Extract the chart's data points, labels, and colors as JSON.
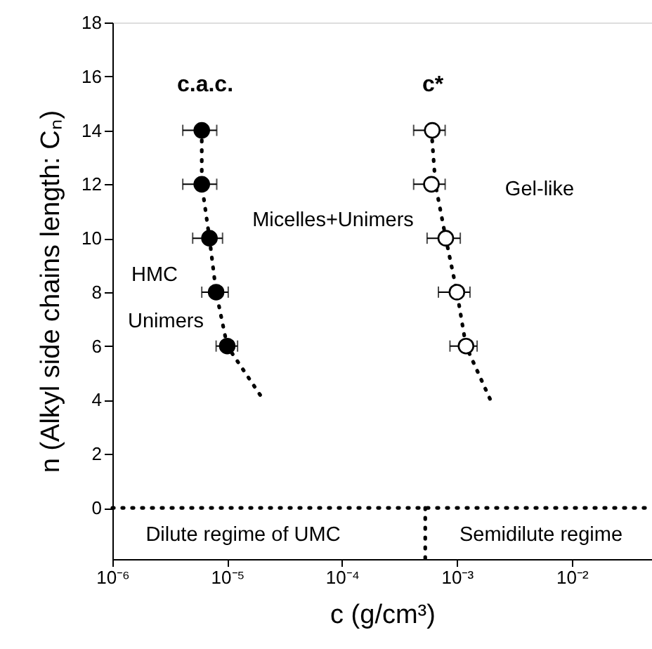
{
  "chart_data": {
    "type": "scatter",
    "xlabel": "c (g/cm³)",
    "ylabel": "n (Alkyl side chains length: Cₙ)",
    "log": "x",
    "xlim": [
      1e-06,
      0.05
    ],
    "ylim": [
      -1.9,
      18
    ],
    "xticks": [
      {
        "value": 1e-06,
        "label": "10⁻⁶"
      },
      {
        "value": 1e-05,
        "label": "10⁻⁵"
      },
      {
        "value": 0.0001,
        "label": "10⁻⁴"
      },
      {
        "value": 0.001,
        "label": "10⁻³"
      },
      {
        "value": 0.01,
        "label": "10⁻²"
      }
    ],
    "yticks": [
      0,
      2,
      4,
      6,
      8,
      10,
      12,
      14,
      16,
      18
    ],
    "grid": false,
    "series": [
      {
        "type": "line",
        "color": "#000000",
        "line_style": "dotted",
        "marker": "none",
        "x": [
          6e-06,
          6e-06,
          7e-06,
          8e-06,
          1e-05,
          2.07e-05
        ],
        "values": [
          14,
          12,
          10,
          8,
          6,
          4
        ]
      },
      {
        "type": "line",
        "color": "#000000",
        "line_style": "dotted",
        "marker": "none",
        "x": [
          0.0006,
          0.00065,
          0.0008,
          0.001,
          0.0012,
          0.00196
        ],
        "values": [
          14,
          12,
          10,
          8,
          6,
          4
        ]
      },
      {
        "type": "line",
        "color": "#000000",
        "line_style": "dotted",
        "marker": "none",
        "x": [
          0.00053,
          0.00053
        ],
        "values": [
          0,
          -1.9
        ]
      },
      {
        "color": "#000000",
        "marker": "circle",
        "x": [
          6e-06,
          6e-06,
          7e-06,
          8e-06,
          1e-05
        ],
        "values": [
          14,
          12,
          10,
          8,
          6
        ],
        "xerrors": [
          [
            4.1e-06,
            8.1e-06
          ],
          [
            4.1e-06,
            8.1e-06
          ],
          [
            5e-06,
            9.1e-06
          ],
          [
            6e-06,
            1.02e-05
          ],
          [
            8e-06,
            1.23e-05
          ]
        ]
      },
      {
        "color": "#ffffff",
        "marker": "circle",
        "x": [
          0.00061,
          0.0006,
          0.0008,
          0.001,
          0.0012
        ],
        "values": [
          14,
          12,
          10,
          8,
          6
        ],
        "xerrors": [
          [
            0.00042,
            0.00079
          ],
          [
            0.00042,
            0.00079
          ],
          [
            0.00055,
            0.00107
          ],
          [
            0.00069,
            0.0013
          ],
          [
            0.00087,
            0.0015
          ]
        ]
      }
    ],
    "ref_lines": [
      {
        "axis": "y",
        "value": 0,
        "label": null,
        "color": "#000000",
        "line_style": "dotted"
      }
    ],
    "annotations": [
      "c.a.c.",
      "c*",
      "Micelles+Unimers",
      "Gel-like",
      "HMC",
      "Unimers",
      "Dilute regime of UMC",
      "Semidilute regime"
    ]
  }
}
